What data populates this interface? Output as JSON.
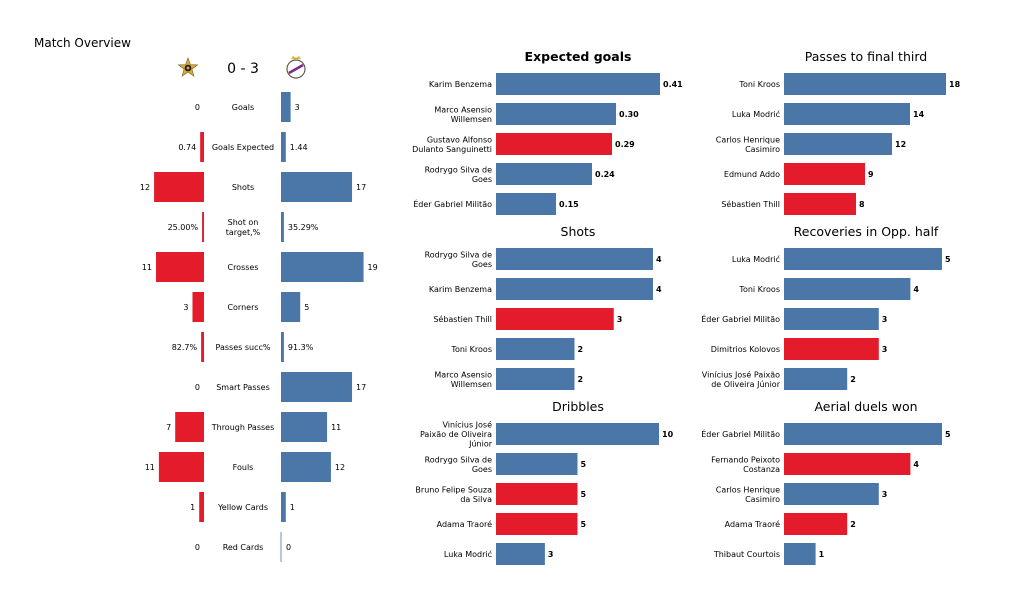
{
  "title": "Match Overview",
  "colors": {
    "home": "#e31b2b",
    "away": "#4a76a8"
  },
  "match": {
    "score": "0 - 3",
    "home_crest": "sheriff-crest-icon",
    "away_crest": "real-madrid-crest-icon"
  },
  "chart_data": [
    {
      "type": "bar",
      "name": "match-overview",
      "orientation": "diverging-horizontal",
      "categories": [
        "Goals",
        "Goals Expected",
        "Shots",
        "Shot on target,%",
        "Crosses",
        "Corners",
        "Passes succ%",
        "Smart Passes",
        "Through Passes",
        "Fouls",
        "Yellow Cards",
        "Red Cards"
      ],
      "home_labels": [
        "0",
        "0.74",
        "12",
        "25.00%",
        "11",
        "3",
        "82.7%",
        "0",
        "7",
        "11",
        "1",
        "0"
      ],
      "away_labels": [
        "3",
        "1.44",
        "17",
        "35.29%",
        "19",
        "5",
        "91.3%",
        "17",
        "11",
        "12",
        "1",
        "0"
      ],
      "home_values": [
        0,
        0.74,
        12,
        25.0,
        11,
        3,
        82.7,
        0,
        7,
        11,
        1,
        0
      ],
      "away_values": [
        3,
        1.44,
        17,
        35.29,
        19,
        5,
        91.3,
        17,
        11,
        12,
        1,
        0
      ],
      "home_share": [
        0,
        0.04,
        0.52,
        0.02,
        0.5,
        0.12,
        0.03,
        0,
        0.3,
        0.47,
        0.05,
        0
      ],
      "away_share": [
        0.1,
        0.05,
        0.74,
        0.03,
        0.86,
        0.2,
        0.03,
        0.74,
        0.48,
        0.52,
        0.05,
        0
      ]
    },
    {
      "type": "bar",
      "title": "Expected goals",
      "title_bold": true,
      "categories": [
        "Karim Benzema",
        "Marco Asensio\nWillemsen",
        "Gustavo Alfonso\nDulanto Sanguinetti",
        "Rodrygo Silva de\nGoes",
        "Éder Gabriel Militão"
      ],
      "values": [
        0.41,
        0.3,
        0.29,
        0.24,
        0.15
      ],
      "labels": [
        "0.41",
        "0.30",
        "0.29",
        "0.24",
        "0.15"
      ],
      "team": [
        "away",
        "away",
        "home",
        "away",
        "away"
      ],
      "xlim": [
        0,
        0.41
      ]
    },
    {
      "type": "bar",
      "title": "Passes to final third",
      "categories": [
        "Toni Kroos",
        "Luka Modrić",
        "Carlos Henrique\nCasimiro",
        "Edmund Addo",
        "Sébastien Thill"
      ],
      "values": [
        18,
        14,
        12,
        9,
        8
      ],
      "labels": [
        "18",
        "14",
        "12",
        "9",
        "8"
      ],
      "team": [
        "away",
        "away",
        "away",
        "home",
        "home"
      ],
      "xlim": [
        0,
        18
      ]
    },
    {
      "type": "bar",
      "title": "Shots",
      "categories": [
        "Rodrygo Silva de\nGoes",
        "Karim Benzema",
        "Sébastien Thill",
        "Toni Kroos",
        "Marco Asensio\nWillemsen"
      ],
      "values": [
        4,
        4,
        3,
        2,
        2
      ],
      "labels": [
        "4",
        "4",
        "3",
        "2",
        "2"
      ],
      "team": [
        "away",
        "away",
        "home",
        "away",
        "away"
      ],
      "xlim": [
        0,
        4
      ]
    },
    {
      "type": "bar",
      "title": "Recoveries in Opp. half",
      "categories": [
        "Luka Modrić",
        "Toni Kroos",
        "Éder Gabriel Militão",
        "Dimitrios Kolovos",
        "Vinícius José Paixão\nde Oliveira Júnior"
      ],
      "values": [
        5,
        4,
        3,
        3,
        2
      ],
      "labels": [
        "5",
        "4",
        "3",
        "3",
        "2"
      ],
      "team": [
        "away",
        "away",
        "away",
        "home",
        "away"
      ],
      "xlim": [
        0,
        5
      ]
    },
    {
      "type": "bar",
      "title": "Dribbles",
      "categories": [
        "Vinícius José\nPaixão de Oliveira\nJúnior",
        "Rodrygo Silva de\nGoes",
        "Bruno Felipe Souza\nda Silva",
        "Adama Traoré",
        "Luka Modrić"
      ],
      "values": [
        10,
        5,
        5,
        5,
        3
      ],
      "labels": [
        "10",
        "5",
        "5",
        "5",
        "3"
      ],
      "team": [
        "away",
        "away",
        "home",
        "home",
        "away"
      ],
      "xlim": [
        0,
        10
      ]
    },
    {
      "type": "bar",
      "title": "Aerial duels won",
      "categories": [
        "Éder Gabriel Militão",
        "Fernando Peixoto\nCostanza",
        "Carlos Henrique\nCasimiro",
        "Adama Traoré",
        "Thibaut Courtois"
      ],
      "values": [
        5,
        4,
        3,
        2,
        1
      ],
      "labels": [
        "5",
        "4",
        "3",
        "2",
        "1"
      ],
      "team": [
        "away",
        "home",
        "away",
        "home",
        "away"
      ],
      "xlim": [
        0,
        5
      ]
    }
  ]
}
